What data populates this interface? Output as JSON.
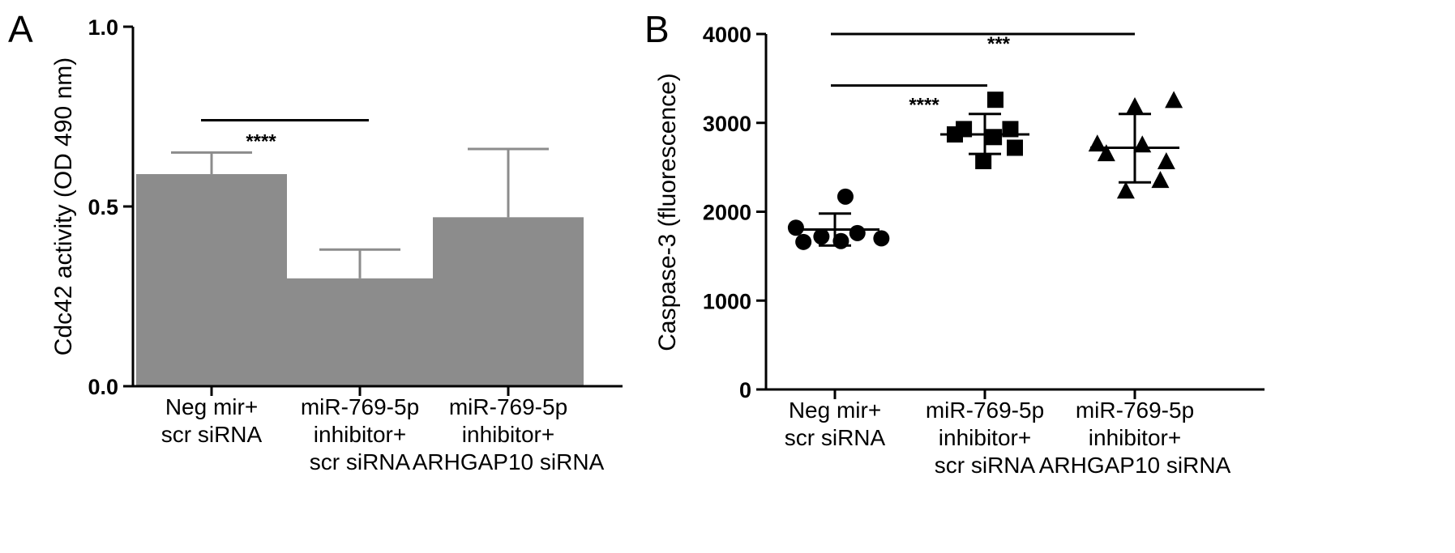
{
  "chart_data": [
    {
      "panel_label": "A",
      "type": "bar",
      "categories": [
        [
          "Neg mir+",
          "scr siRNA"
        ],
        [
          "miR-769-5p",
          "inhibitor+",
          "scr siRNA"
        ],
        [
          "miR-769-5p",
          "inhibitor+",
          "ARHGAP10 siRNA"
        ]
      ],
      "values": [
        0.59,
        0.3,
        0.47
      ],
      "error_upper": [
        0.65,
        0.38,
        0.66
      ],
      "ylabel": "Cdc42 activity (OD 490 nm)",
      "ylim": [
        0,
        1.0
      ],
      "yticks": [
        0.0,
        0.5,
        1.0
      ],
      "ytick_labels": [
        "0.0",
        "0.5",
        "1.0"
      ],
      "bar_color": "#8c8c8c",
      "error_color": "#8c8c8c",
      "grid": false,
      "significance": [
        {
          "from": 0,
          "to": 1,
          "label": "****",
          "y": 0.74
        }
      ]
    },
    {
      "panel_label": "B",
      "type": "scatter",
      "categories": [
        [
          "Neg mir+",
          "scr siRNA"
        ],
        [
          "miR-769-5p",
          "inhibitor+",
          "scr siRNA"
        ],
        [
          "miR-769-5p",
          "inhibitor+",
          "ARHGAP10 siRNA"
        ]
      ],
      "series": [
        {
          "marker": "circle",
          "points": [
            {
              "dx": -0.26,
              "y": 1820
            },
            {
              "dx": -0.21,
              "y": 1660
            },
            {
              "dx": -0.09,
              "y": 1720
            },
            {
              "dx": 0.07,
              "y": 2170
            },
            {
              "dx": 0.04,
              "y": 1670
            },
            {
              "dx": 0.15,
              "y": 1760
            },
            {
              "dx": 0.31,
              "y": 1700
            }
          ],
          "mean": 1800,
          "sd_low": 1620,
          "sd_high": 1980
        },
        {
          "marker": "square",
          "points": [
            {
              "dx": -0.2,
              "y": 2870
            },
            {
              "dx": -0.14,
              "y": 2930
            },
            {
              "dx": -0.01,
              "y": 2570
            },
            {
              "dx": 0.07,
              "y": 3260
            },
            {
              "dx": 0.17,
              "y": 2930
            },
            {
              "dx": 0.2,
              "y": 2720
            },
            {
              "dx": 0.06,
              "y": 2840
            }
          ],
          "mean": 2870,
          "sd_low": 2650,
          "sd_high": 3100
        },
        {
          "marker": "triangle",
          "points": [
            {
              "dx": -0.25,
              "y": 2760
            },
            {
              "dx": -0.19,
              "y": 2650
            },
            {
              "dx": -0.06,
              "y": 2230
            },
            {
              "dx": 0.0,
              "y": 3180
            },
            {
              "dx": 0.05,
              "y": 2750
            },
            {
              "dx": 0.17,
              "y": 2350
            },
            {
              "dx": 0.26,
              "y": 3250
            },
            {
              "dx": 0.21,
              "y": 2560
            }
          ],
          "mean": 2720,
          "sd_low": 2330,
          "sd_high": 3100
        }
      ],
      "ylabel": "Caspase-3 (fluorescence)",
      "ylim": [
        0,
        4000
      ],
      "yticks": [
        0,
        1000,
        2000,
        3000,
        4000
      ],
      "ytick_labels": [
        "0",
        "1000",
        "2000",
        "3000",
        "4000"
      ],
      "marker_color": "#000000",
      "grid": false,
      "significance": [
        {
          "from": 0,
          "to": 1,
          "label": "****",
          "y": 3420
        },
        {
          "from": 0,
          "to": 2,
          "label": "***",
          "y": 4000
        }
      ]
    }
  ]
}
